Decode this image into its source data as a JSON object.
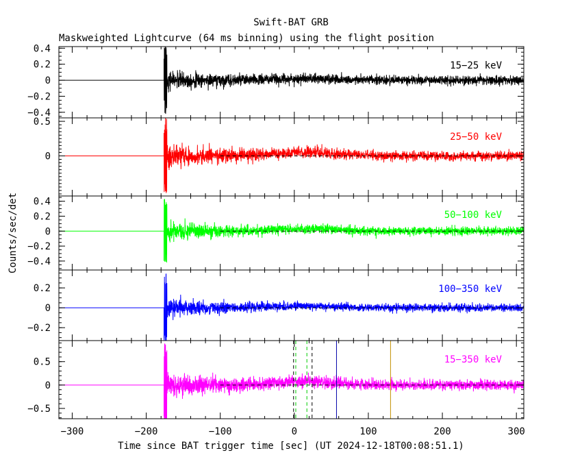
{
  "chart_data": {
    "type": "line",
    "title": "Swift-BAT GRB",
    "subtitle": "Maskweighted Lightcurve (64 ms binning) using the flight position",
    "xlabel": "Time since BAT trigger time [sec] (UT 2024-12-18T00:08:51.1)",
    "ylabel": "Counts/sec/det",
    "xlim": [
      -318,
      310
    ],
    "x_ticks": [
      -300,
      -200,
      -100,
      0,
      100,
      200,
      300
    ],
    "x_tick_labels": [
      "−300",
      "−200",
      "−100",
      "0",
      "100",
      "200",
      "300"
    ],
    "signal_start": -176,
    "panels": [
      {
        "name": "15-25 keV",
        "label": "15−25 keV",
        "color": "#000000",
        "ylim": [
          -0.47,
          0.42
        ],
        "y_ticks": [
          0.4,
          0.2,
          0,
          -0.2,
          -0.4
        ],
        "y_tick_labels": [
          "0.4",
          "0.2",
          "0",
          "−0.2",
          "−0.4"
        ],
        "spike": 0.42,
        "mean": 0.0,
        "noise_start": 0.11,
        "noise_end": 0.05,
        "bump": 0.02
      },
      {
        "name": "25-50 keV",
        "label": "25−50 keV",
        "color": "#ff0000",
        "ylim": [
          -0.58,
          0.55
        ],
        "y_ticks": [
          0.5,
          0
        ],
        "y_tick_labels": [
          "0.5",
          "0"
        ],
        "spike": 0.55,
        "mean": 0.0,
        "noise_start": 0.16,
        "noise_end": 0.06,
        "bump": 0.05
      },
      {
        "name": "50-100 keV",
        "label": "50−100 keV",
        "color": "#00ff00",
        "ylim": [
          -0.52,
          0.47
        ],
        "y_ticks": [
          0.4,
          0.2,
          0,
          -0.2,
          -0.4
        ],
        "y_tick_labels": [
          "0.4",
          "0.2",
          "0",
          "−0.2",
          "−0.4"
        ],
        "spike": 0.45,
        "mean": 0.0,
        "noise_start": 0.12,
        "noise_end": 0.05,
        "bump": 0.03
      },
      {
        "name": "100-350 keV",
        "label": "100−350 keV",
        "color": "#0000ff",
        "ylim": [
          -0.33,
          0.38
        ],
        "y_ticks": [
          0.2,
          0,
          -0.2
        ],
        "y_tick_labels": [
          "0.2",
          "0",
          "−0.2"
        ],
        "spike": 0.38,
        "mean": 0.0,
        "noise_start": 0.09,
        "noise_end": 0.035,
        "bump": 0.015
      },
      {
        "name": "15-350 keV",
        "label": "15−350 keV",
        "color": "#ff00ff",
        "ylim": [
          -0.72,
          0.95
        ],
        "y_ticks": [
          0.5,
          0,
          -0.5
        ],
        "y_tick_labels": [
          "0.5",
          "0",
          "−0.5"
        ],
        "spike": 0.95,
        "mean": 0.0,
        "noise_start": 0.26,
        "noise_end": 0.1,
        "bump": 0.08
      }
    ],
    "markers_last_panel": [
      {
        "t": -1,
        "color": "#000000",
        "style": "dashed"
      },
      {
        "t": 24,
        "color": "#000000",
        "style": "dashed"
      },
      {
        "t": 2,
        "color": "#00cc00",
        "style": "dashed"
      },
      {
        "t": 17,
        "color": "#00cc00",
        "style": "dashed"
      },
      {
        "t": 57,
        "color": "#0000aa",
        "style": "solid"
      },
      {
        "t": 130,
        "color": "#c09000",
        "style": "solid"
      }
    ],
    "zero_dashed_from": -100
  }
}
